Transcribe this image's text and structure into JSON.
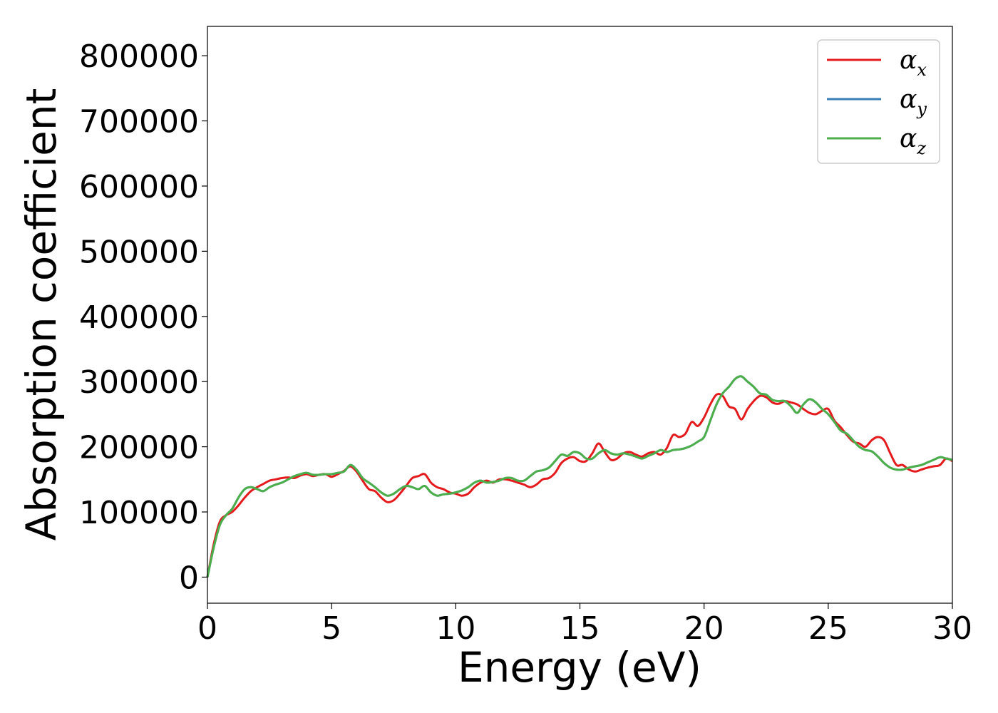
{
  "chart_data": {
    "type": "line",
    "title": "",
    "xlabel": "Energy (eV)",
    "ylabel": "Absorption coefficient",
    "xlim": [
      0,
      30
    ],
    "ylim": [
      -40000,
      845000
    ],
    "x_ticks": [
      0,
      5,
      10,
      15,
      20,
      25,
      30
    ],
    "y_ticks": [
      0,
      100000,
      200000,
      300000,
      400000,
      500000,
      600000,
      700000,
      800000
    ],
    "grid": false,
    "legend_position": "top-right",
    "series": [
      {
        "name": "α",
        "subscript": "x",
        "color": "#e41a1c",
        "x": [
          0,
          0.25,
          0.5,
          0.75,
          1.0,
          1.25,
          1.5,
          1.75,
          2.0,
          2.25,
          2.5,
          2.75,
          3.0,
          3.25,
          3.5,
          3.75,
          4.0,
          4.25,
          4.5,
          4.75,
          5.0,
          5.25,
          5.5,
          5.75,
          6.0,
          6.25,
          6.5,
          6.75,
          7.0,
          7.25,
          7.5,
          7.75,
          8.0,
          8.25,
          8.5,
          8.75,
          9.0,
          9.25,
          9.5,
          9.75,
          10.0,
          10.25,
          10.5,
          10.75,
          11.0,
          11.25,
          11.5,
          11.75,
          12.0,
          12.25,
          12.5,
          12.75,
          13.0,
          13.25,
          13.5,
          13.75,
          14.0,
          14.25,
          14.5,
          14.75,
          15.0,
          15.25,
          15.5,
          15.75,
          16.0,
          16.25,
          16.5,
          16.75,
          17.0,
          17.25,
          17.5,
          17.75,
          18.0,
          18.25,
          18.5,
          18.75,
          19.0,
          19.25,
          19.5,
          19.75,
          20.0,
          20.25,
          20.5,
          20.75,
          21.0,
          21.25,
          21.5,
          21.75,
          22.0,
          22.25,
          22.5,
          22.75,
          23.0,
          23.25,
          23.5,
          23.75,
          24.0,
          24.25,
          24.5,
          24.75,
          25.0,
          25.25,
          25.5,
          25.75,
          26.0,
          26.25,
          26.5,
          26.75,
          27.0,
          27.25,
          27.5,
          27.75,
          28.0,
          28.25,
          28.5,
          28.75,
          29.0,
          29.25,
          29.5,
          29.75,
          30.0
        ],
        "y": [
          0,
          50000,
          85000,
          95000,
          100000,
          110000,
          122000,
          132000,
          138000,
          143000,
          148000,
          150000,
          152000,
          153000,
          152000,
          156000,
          158000,
          155000,
          157000,
          158000,
          154000,
          158000,
          163000,
          170000,
          162000,
          148000,
          135000,
          132000,
          122000,
          115000,
          118000,
          128000,
          140000,
          152000,
          155000,
          158000,
          145000,
          138000,
          135000,
          130000,
          128000,
          125000,
          128000,
          138000,
          145000,
          148000,
          145000,
          150000,
          150000,
          148000,
          145000,
          142000,
          138000,
          142000,
          150000,
          152000,
          160000,
          175000,
          182000,
          184000,
          178000,
          178000,
          190000,
          205000,
          192000,
          180000,
          182000,
          190000,
          192000,
          188000,
          185000,
          190000,
          192000,
          188000,
          198000,
          218000,
          215000,
          220000,
          238000,
          232000,
          245000,
          265000,
          280000,
          278000,
          262000,
          258000,
          242000,
          258000,
          270000,
          278000,
          276000,
          268000,
          266000,
          270000,
          268000,
          265000,
          258000,
          252000,
          250000,
          255000,
          258000,
          240000,
          230000,
          218000,
          208000,
          205000,
          200000,
          210000,
          215000,
          210000,
          190000,
          172000,
          172000,
          165000,
          162000,
          165000,
          168000,
          170000,
          172000,
          182000,
          178000
        ]
      },
      {
        "name": "α",
        "subscript": "y",
        "color": "#377eb8",
        "x": [
          0,
          0.25,
          0.5,
          0.75,
          1.0,
          1.25,
          1.5,
          1.75,
          2.0,
          2.25,
          2.5,
          2.75,
          3.0,
          3.25,
          3.5,
          3.75,
          4.0,
          4.25,
          4.5,
          4.75,
          5.0,
          5.25,
          5.5,
          5.75,
          6.0,
          6.25,
          6.5,
          6.75,
          7.0,
          7.25,
          7.5,
          7.75,
          8.0,
          8.25,
          8.5,
          8.75,
          9.0,
          9.25,
          9.5,
          9.75,
          10.0,
          10.25,
          10.5,
          10.75,
          11.0,
          11.25,
          11.5,
          11.75,
          12.0,
          12.25,
          12.5,
          12.75,
          13.0,
          13.25,
          13.5,
          13.75,
          14.0,
          14.25,
          14.5,
          14.75,
          15.0,
          15.25,
          15.5,
          15.75,
          16.0,
          16.25,
          16.5,
          16.75,
          17.0,
          17.25,
          17.5,
          17.75,
          18.0,
          18.25,
          18.5,
          18.75,
          19.0,
          19.25,
          19.5,
          19.75,
          20.0,
          20.25,
          20.5,
          20.75,
          21.0,
          21.25,
          21.5,
          21.75,
          22.0,
          22.25,
          22.5,
          22.75,
          23.0,
          23.25,
          23.5,
          23.75,
          24.0,
          24.25,
          24.5,
          24.75,
          25.0,
          25.25,
          25.5,
          25.75,
          26.0,
          26.25,
          26.5,
          26.75,
          27.0,
          27.25,
          27.5,
          27.75,
          28.0,
          28.25,
          28.5,
          28.75,
          29.0,
          29.25,
          29.5,
          29.75,
          30.0
        ],
        "y": [
          0,
          45000,
          80000,
          95000,
          105000,
          122000,
          135000,
          138000,
          135000,
          132000,
          138000,
          142000,
          145000,
          150000,
          155000,
          158000,
          160000,
          157000,
          157000,
          158000,
          158000,
          160000,
          162000,
          172000,
          165000,
          152000,
          145000,
          138000,
          130000,
          125000,
          128000,
          135000,
          140000,
          138000,
          135000,
          140000,
          130000,
          125000,
          127000,
          128000,
          130000,
          133000,
          138000,
          145000,
          148000,
          145000,
          146000,
          148000,
          152000,
          152000,
          148000,
          148000,
          155000,
          162000,
          164000,
          168000,
          178000,
          188000,
          186000,
          192000,
          190000,
          182000,
          182000,
          190000,
          195000,
          190000,
          188000,
          190000,
          188000,
          185000,
          182000,
          186000,
          190000,
          195000,
          192000,
          195000,
          196000,
          198000,
          202000,
          208000,
          215000,
          240000,
          265000,
          282000,
          292000,
          304000,
          308000,
          300000,
          292000,
          282000,
          280000,
          272000,
          270000,
          270000,
          262000,
          252000,
          265000,
          273000,
          268000,
          258000,
          250000,
          238000,
          225000,
          220000,
          210000,
          200000,
          195000,
          193000,
          185000,
          175000,
          168000,
          165000,
          165000,
          168000,
          170000,
          172000,
          176000,
          180000,
          184000,
          182000,
          180000
        ]
      },
      {
        "name": "α",
        "subscript": "z",
        "color": "#4daf4a",
        "x": [
          0,
          0.25,
          0.5,
          0.75,
          1.0,
          1.25,
          1.5,
          1.75,
          2.0,
          2.25,
          2.5,
          2.75,
          3.0,
          3.25,
          3.5,
          3.75,
          4.0,
          4.25,
          4.5,
          4.75,
          5.0,
          5.25,
          5.5,
          5.75,
          6.0,
          6.25,
          6.5,
          6.75,
          7.0,
          7.25,
          7.5,
          7.75,
          8.0,
          8.25,
          8.5,
          8.75,
          9.0,
          9.25,
          9.5,
          9.75,
          10.0,
          10.25,
          10.5,
          10.75,
          11.0,
          11.25,
          11.5,
          11.75,
          12.0,
          12.25,
          12.5,
          12.75,
          13.0,
          13.25,
          13.5,
          13.75,
          14.0,
          14.25,
          14.5,
          14.75,
          15.0,
          15.25,
          15.5,
          15.75,
          16.0,
          16.25,
          16.5,
          16.75,
          17.0,
          17.25,
          17.5,
          17.75,
          18.0,
          18.25,
          18.5,
          18.75,
          19.0,
          19.25,
          19.5,
          19.75,
          20.0,
          20.25,
          20.5,
          20.75,
          21.0,
          21.25,
          21.5,
          21.75,
          22.0,
          22.25,
          22.5,
          22.75,
          23.0,
          23.25,
          23.5,
          23.75,
          24.0,
          24.25,
          24.5,
          24.75,
          25.0,
          25.25,
          25.5,
          25.75,
          26.0,
          26.25,
          26.5,
          26.75,
          27.0,
          27.25,
          27.5,
          27.75,
          28.0,
          28.25,
          28.5,
          28.75,
          29.0,
          29.25,
          29.5,
          29.75,
          30.0
        ],
        "y": [
          0,
          45000,
          80000,
          95000,
          105000,
          122000,
          135000,
          138000,
          135000,
          132000,
          138000,
          142000,
          145000,
          150000,
          155000,
          158000,
          160000,
          157000,
          157000,
          158000,
          158000,
          160000,
          162000,
          172000,
          165000,
          152000,
          145000,
          138000,
          130000,
          125000,
          128000,
          135000,
          140000,
          138000,
          135000,
          140000,
          130000,
          125000,
          127000,
          128000,
          130000,
          133000,
          138000,
          145000,
          148000,
          145000,
          146000,
          148000,
          152000,
          152000,
          148000,
          148000,
          155000,
          162000,
          164000,
          168000,
          178000,
          188000,
          186000,
          192000,
          190000,
          182000,
          182000,
          190000,
          195000,
          190000,
          188000,
          190000,
          188000,
          185000,
          182000,
          186000,
          190000,
          195000,
          192000,
          195000,
          196000,
          198000,
          202000,
          208000,
          215000,
          240000,
          265000,
          282000,
          292000,
          304000,
          308000,
          300000,
          292000,
          282000,
          280000,
          272000,
          270000,
          270000,
          262000,
          252000,
          265000,
          273000,
          268000,
          258000,
          250000,
          238000,
          225000,
          220000,
          210000,
          200000,
          195000,
          193000,
          185000,
          175000,
          168000,
          165000,
          165000,
          168000,
          170000,
          172000,
          176000,
          180000,
          184000,
          182000,
          180000
        ]
      }
    ]
  }
}
